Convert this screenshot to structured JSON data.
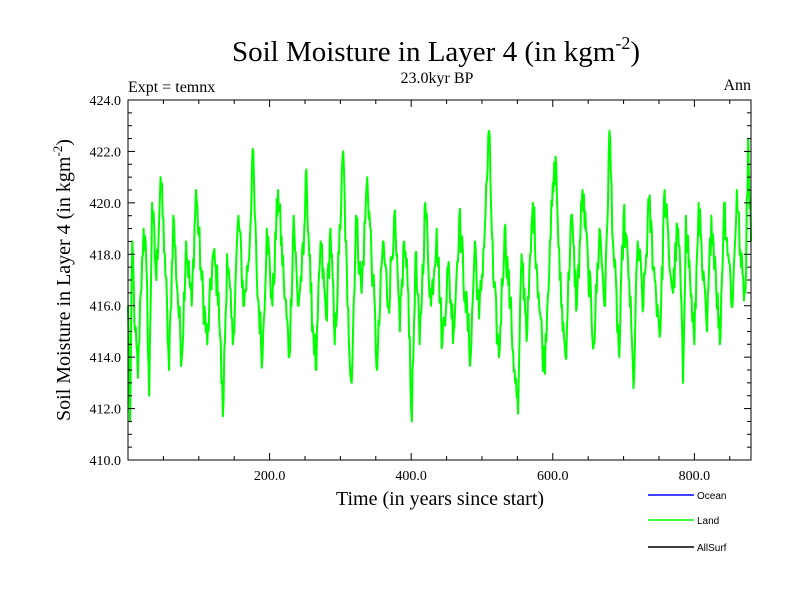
{
  "chart_data": {
    "type": "line",
    "title_main": "Soil Moisture in Layer 4 (in kgm",
    "title_sup": "-2",
    "title_end": ")",
    "subtitle": "23.0kyr BP",
    "left_label": "Expt = temnx",
    "right_label": "Ann",
    "xlabel": "Time (in years since start)",
    "ylabel_main": "Soil Moisture in Layer 4 (in kgm",
    "ylabel_sup": "-2",
    "ylabel_end": ")",
    "xlim": [
      0,
      880
    ],
    "ylim": [
      410.0,
      424.0
    ],
    "xticks": [
      200,
      400,
      600,
      800
    ],
    "xtick_labels": [
      "200.0",
      "400.0",
      "600.0",
      "800.0"
    ],
    "yticks": [
      410,
      412,
      414,
      416,
      418,
      420,
      422,
      424
    ],
    "ytick_labels": [
      "410.0",
      "412.0",
      "414.0",
      "416.0",
      "418.0",
      "420.0",
      "422.0",
      "424.0"
    ],
    "legend": [
      {
        "name": "Ocean",
        "color": "#0000ff"
      },
      {
        "name": "Land",
        "color": "#00ff00"
      },
      {
        "name": "AllSurf",
        "color": "#000000"
      }
    ],
    "series": [
      {
        "name": "Land",
        "color": "#00ff00",
        "keypoints": [
          [
            0,
            416.0
          ],
          [
            3,
            411.5
          ],
          [
            6,
            418.5
          ],
          [
            10,
            415.0
          ],
          [
            14,
            413.2
          ],
          [
            18,
            416.5
          ],
          [
            22,
            419.0
          ],
          [
            26,
            417.5
          ],
          [
            30,
            412.5
          ],
          [
            34,
            420.0
          ],
          [
            40,
            417.0
          ],
          [
            46,
            421.0
          ],
          [
            52,
            418.0
          ],
          [
            58,
            413.5
          ],
          [
            64,
            419.5
          ],
          [
            70,
            416.5
          ],
          [
            76,
            414.0
          ],
          [
            82,
            418.5
          ],
          [
            90,
            416.0
          ],
          [
            96,
            420.5
          ],
          [
            104,
            417.0
          ],
          [
            112,
            414.5
          ],
          [
            120,
            418.0
          ],
          [
            128,
            416.5
          ],
          [
            134,
            411.7
          ],
          [
            140,
            418.0
          ],
          [
            148,
            414.5
          ],
          [
            156,
            419.5
          ],
          [
            164,
            416.0
          ],
          [
            172,
            418.5
          ],
          [
            176,
            422.1
          ],
          [
            182,
            417.0
          ],
          [
            190,
            414.0
          ],
          [
            196,
            419.0
          ],
          [
            204,
            416.0
          ],
          [
            212,
            420.5
          ],
          [
            220,
            417.0
          ],
          [
            228,
            414.0
          ],
          [
            234,
            419.5
          ],
          [
            240,
            416.0
          ],
          [
            248,
            418.0
          ],
          [
            252,
            421.3
          ],
          [
            258,
            416.5
          ],
          [
            266,
            413.5
          ],
          [
            272,
            418.5
          ],
          [
            280,
            415.5
          ],
          [
            286,
            419.0
          ],
          [
            292,
            414.5
          ],
          [
            298,
            418.0
          ],
          [
            304,
            422.0
          ],
          [
            310,
            416.0
          ],
          [
            316,
            413.0
          ],
          [
            322,
            419.5
          ],
          [
            330,
            416.5
          ],
          [
            338,
            421.0
          ],
          [
            346,
            417.0
          ],
          [
            352,
            413.5
          ],
          [
            360,
            418.5
          ],
          [
            368,
            416.0
          ],
          [
            376,
            419.5
          ],
          [
            384,
            415.0
          ],
          [
            390,
            418.5
          ],
          [
            396,
            416.5
          ],
          [
            401,
            411.5
          ],
          [
            406,
            418.0
          ],
          [
            412,
            414.5
          ],
          [
            420,
            420.0
          ],
          [
            428,
            416.0
          ],
          [
            436,
            419.0
          ],
          [
            444,
            414.5
          ],
          [
            452,
            417.5
          ],
          [
            460,
            415.0
          ],
          [
            468,
            419.5
          ],
          [
            476,
            416.5
          ],
          [
            484,
            414.0
          ],
          [
            490,
            418.5
          ],
          [
            496,
            415.5
          ],
          [
            504,
            419.0
          ],
          [
            510,
            422.8
          ],
          [
            516,
            417.0
          ],
          [
            524,
            414.0
          ],
          [
            532,
            419.0
          ],
          [
            540,
            416.0
          ],
          [
            546,
            413.5
          ],
          [
            551,
            411.8
          ],
          [
            556,
            418.0
          ],
          [
            564,
            415.0
          ],
          [
            572,
            420.0
          ],
          [
            580,
            416.5
          ],
          [
            588,
            413.5
          ],
          [
            596,
            418.5
          ],
          [
            604,
            421.8
          ],
          [
            610,
            417.0
          ],
          [
            618,
            414.0
          ],
          [
            626,
            419.5
          ],
          [
            634,
            416.0
          ],
          [
            642,
            420.5
          ],
          [
            650,
            417.5
          ],
          [
            658,
            414.5
          ],
          [
            666,
            419.0
          ],
          [
            674,
            416.0
          ],
          [
            680,
            422.8
          ],
          [
            686,
            418.0
          ],
          [
            694,
            414.0
          ],
          [
            700,
            419.5
          ],
          [
            708,
            417.0
          ],
          [
            714,
            412.8
          ],
          [
            720,
            418.5
          ],
          [
            728,
            416.0
          ],
          [
            736,
            420.0
          ],
          [
            744,
            417.0
          ],
          [
            752,
            415.0
          ],
          [
            758,
            420.5
          ],
          [
            764,
            418.0
          ],
          [
            770,
            416.5
          ],
          [
            776,
            419.0
          ],
          [
            780,
            417.5
          ],
          [
            784,
            413.0
          ],
          [
            788,
            419.5
          ],
          [
            794,
            417.0
          ],
          [
            800,
            414.5
          ],
          [
            806,
            420.0
          ],
          [
            812,
            417.0
          ],
          [
            818,
            415.0
          ],
          [
            824,
            419.5
          ],
          [
            830,
            417.5
          ],
          [
            836,
            414.5
          ],
          [
            842,
            420.0
          ],
          [
            848,
            418.0
          ],
          [
            854,
            416.0
          ],
          [
            860,
            420.5
          ],
          [
            866,
            417.5
          ],
          [
            872,
            416.5
          ],
          [
            876,
            422.5
          ],
          [
            880,
            418.5
          ]
        ]
      }
    ]
  }
}
